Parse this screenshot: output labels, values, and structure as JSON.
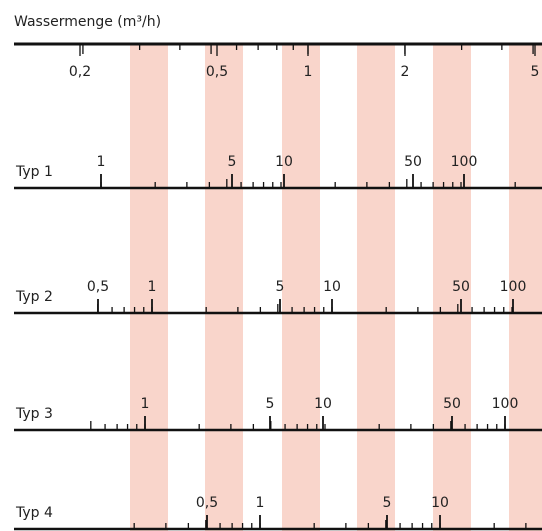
{
  "title": "Wassermenge (m³/h)",
  "top_axis": {
    "labels": [
      "0,2",
      "0,5",
      "1",
      "2",
      "5"
    ]
  },
  "rows": [
    {
      "name": "Typ 1",
      "labels": [
        "1",
        "5",
        "10",
        "50",
        "100"
      ]
    },
    {
      "name": "Typ 2",
      "labels": [
        "0,5",
        "1",
        "5",
        "10",
        "50",
        "100"
      ]
    },
    {
      "name": "Typ 3",
      "labels": [
        "1",
        "5",
        "10",
        "50",
        "100"
      ]
    },
    {
      "name": "Typ 4",
      "labels": [
        "0,5",
        "1",
        "5",
        "10"
      ]
    }
  ]
}
